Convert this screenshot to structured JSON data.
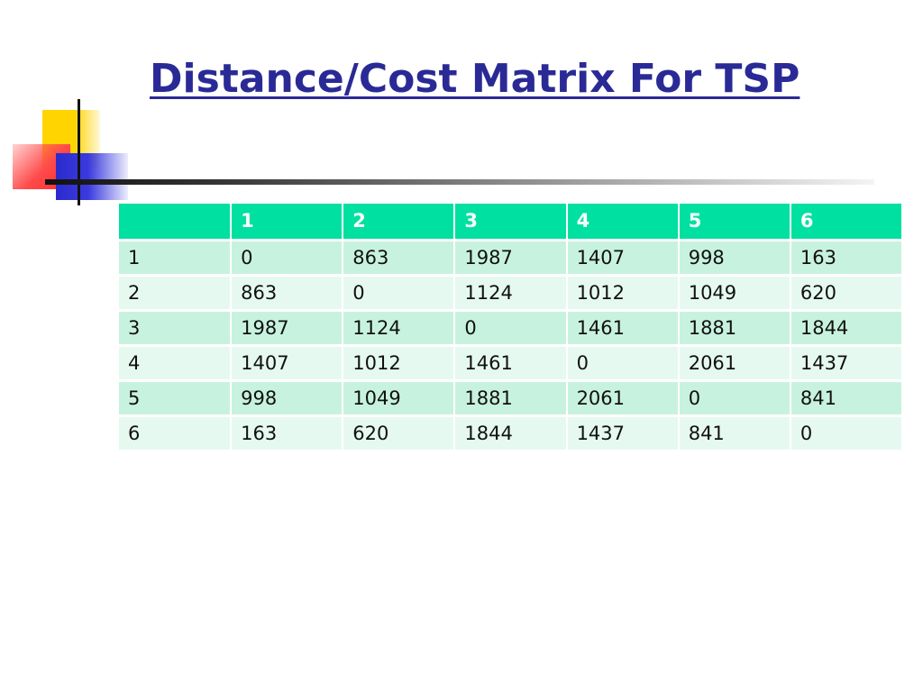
{
  "slide": {
    "title": "Distance/Cost Matrix For TSP"
  },
  "matrix": {
    "headers": [
      "",
      "1",
      "2",
      "3",
      "4",
      "5",
      "6"
    ],
    "rows": [
      [
        "1",
        "0",
        "863",
        "1987",
        "1407",
        "998",
        "163"
      ],
      [
        "2",
        "863",
        "0",
        "1124",
        "1012",
        "1049",
        "620"
      ],
      [
        "3",
        "1987",
        "1124",
        "0",
        "1461",
        "1881",
        "1844"
      ],
      [
        "4",
        "1407",
        "1012",
        "1461",
        "0",
        "2061",
        "1437"
      ],
      [
        "5",
        "998",
        "1049",
        "1881",
        "2061",
        "0",
        "841"
      ],
      [
        "6",
        "163",
        "620",
        "1844",
        "1437",
        "841",
        "0"
      ]
    ]
  },
  "colors": {
    "title": "#2a2a96",
    "header_bg": "#00e0a0",
    "row_odd_bg": "#c8f2e0",
    "row_even_bg": "#e6f9f1"
  }
}
